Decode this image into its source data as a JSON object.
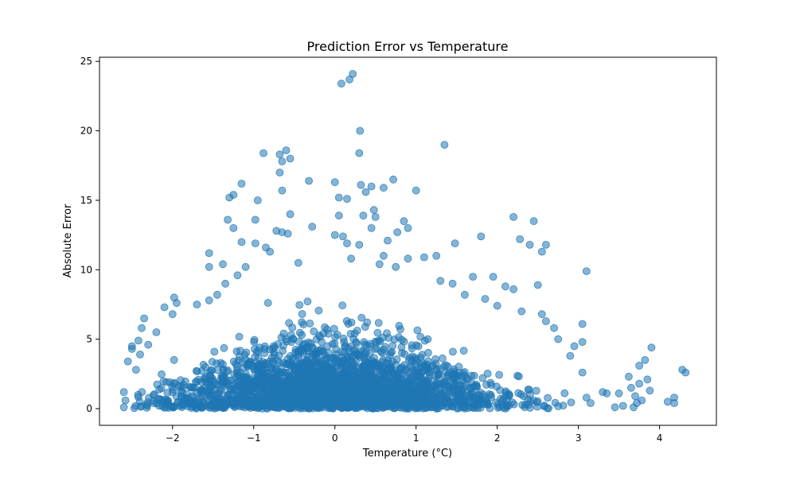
{
  "chart_data": {
    "type": "scatter",
    "title": "Prediction Error vs Temperature",
    "xlabel": "Temperature (°C)",
    "ylabel": "Absolute Error",
    "xlim": [
      -2.9,
      4.7
    ],
    "ylim": [
      -1.2,
      25.3
    ],
    "xticks": [
      {
        "value": -2,
        "label": "−2"
      },
      {
        "value": -1,
        "label": "−1"
      },
      {
        "value": 0,
        "label": "0"
      },
      {
        "value": 1,
        "label": "1"
      },
      {
        "value": 2,
        "label": "2"
      },
      {
        "value": 3,
        "label": "3"
      },
      {
        "value": 4,
        "label": "4"
      }
    ],
    "yticks": [
      {
        "value": 0,
        "label": "0"
      },
      {
        "value": 5,
        "label": "5"
      },
      {
        "value": 10,
        "label": "10"
      },
      {
        "value": 15,
        "label": "15"
      },
      {
        "value": 20,
        "label": "20"
      },
      {
        "value": 25,
        "label": "25"
      }
    ],
    "grid": false,
    "marker_color": "#1f77b4",
    "marker_alpha": 0.55,
    "series": [
      {
        "points": [
          [
            0.22,
            24.1
          ],
          [
            0.18,
            23.7
          ],
          [
            0.08,
            23.4
          ],
          [
            0.31,
            20.0
          ],
          [
            1.35,
            19.0
          ],
          [
            -0.6,
            18.6
          ],
          [
            -0.88,
            18.4
          ],
          [
            0.3,
            18.4
          ],
          [
            -0.68,
            18.3
          ],
          [
            -0.55,
            18.0
          ],
          [
            -0.65,
            17.8
          ],
          [
            -0.68,
            17.0
          ],
          [
            0.72,
            16.5
          ],
          [
            0.0,
            16.3
          ],
          [
            -0.32,
            16.4
          ],
          [
            -1.15,
            16.2
          ],
          [
            0.32,
            16.1
          ],
          [
            0.6,
            15.9
          ],
          [
            0.45,
            16.0
          ],
          [
            0.38,
            15.6
          ],
          [
            1.0,
            15.7
          ],
          [
            -0.65,
            15.7
          ],
          [
            -1.25,
            15.4
          ],
          [
            -1.3,
            15.2
          ],
          [
            0.05,
            15.2
          ],
          [
            0.15,
            15.1
          ],
          [
            -0.95,
            15.0
          ],
          [
            0.48,
            14.3
          ],
          [
            -0.55,
            14.0
          ],
          [
            0.05,
            13.9
          ],
          [
            0.35,
            13.9
          ],
          [
            0.5,
            13.8
          ],
          [
            2.2,
            13.8
          ],
          [
            2.45,
            13.5
          ],
          [
            -1.32,
            13.6
          ],
          [
            -0.98,
            13.6
          ],
          [
            0.85,
            13.5
          ],
          [
            -0.28,
            13.1
          ],
          [
            0.45,
            13.0
          ],
          [
            -1.25,
            13.0
          ],
          [
            0.9,
            13.0
          ],
          [
            -0.72,
            12.8
          ],
          [
            0.0,
            12.5
          ],
          [
            0.77,
            12.7
          ],
          [
            -0.65,
            12.7
          ],
          [
            0.1,
            12.4
          ],
          [
            -0.58,
            12.6
          ],
          [
            1.8,
            12.4
          ],
          [
            2.28,
            12.2
          ],
          [
            0.65,
            12.1
          ],
          [
            2.4,
            11.8
          ],
          [
            1.48,
            11.9
          ],
          [
            2.6,
            11.8
          ],
          [
            2.55,
            11.3
          ],
          [
            -1.15,
            12.0
          ],
          [
            -0.98,
            11.9
          ],
          [
            0.15,
            11.9
          ],
          [
            0.3,
            11.8
          ],
          [
            -0.85,
            11.6
          ],
          [
            -0.8,
            11.3
          ],
          [
            -1.55,
            11.2
          ],
          [
            0.6,
            11.0
          ],
          [
            1.25,
            11.0
          ],
          [
            1.1,
            10.9
          ],
          [
            0.9,
            10.8
          ],
          [
            -1.55,
            10.2
          ],
          [
            -1.38,
            10.4
          ],
          [
            3.1,
            9.9
          ],
          [
            1.7,
            9.5
          ],
          [
            1.95,
            9.5
          ],
          [
            2.2,
            8.6
          ],
          [
            2.5,
            8.9
          ],
          [
            -2.1,
            7.3
          ],
          [
            -1.98,
            8.0
          ],
          [
            -1.95,
            7.6
          ],
          [
            -2.0,
            6.8
          ],
          [
            -2.35,
            6.5
          ],
          [
            -2.38,
            5.8
          ],
          [
            -2.42,
            4.9
          ],
          [
            -2.5,
            4.3
          ],
          [
            -2.5,
            4.5
          ],
          [
            -2.55,
            3.4
          ],
          [
            -2.6,
            1.2
          ],
          [
            -2.58,
            0.6
          ],
          [
            -2.6,
            0.1
          ],
          [
            -2.45,
            2.8
          ],
          [
            2.6,
            6.3
          ],
          [
            2.7,
            5.8
          ],
          [
            2.95,
            4.5
          ],
          [
            3.05,
            6.1
          ],
          [
            3.05,
            4.8
          ],
          [
            2.9,
            3.8
          ],
          [
            3.05,
            2.6
          ],
          [
            3.1,
            0.8
          ],
          [
            3.15,
            0.4
          ],
          [
            3.3,
            1.2
          ],
          [
            3.35,
            1.1
          ],
          [
            3.45,
            0.1
          ],
          [
            3.55,
            0.2
          ],
          [
            3.5,
            1.1
          ],
          [
            3.62,
            2.3
          ],
          [
            3.65,
            1.5
          ],
          [
            3.7,
            0.9
          ],
          [
            3.75,
            1.8
          ],
          [
            3.72,
            0.4
          ],
          [
            3.68,
            0.1
          ],
          [
            3.78,
            0.6
          ],
          [
            3.85,
            2.1
          ],
          [
            3.75,
            3.1
          ],
          [
            3.82,
            3.5
          ],
          [
            3.9,
            4.4
          ],
          [
            3.88,
            1.3
          ],
          [
            4.1,
            0.5
          ],
          [
            4.18,
            0.8
          ],
          [
            4.18,
            0.4
          ],
          [
            4.28,
            2.8
          ],
          [
            4.32,
            2.6
          ],
          [
            2.1,
            8.8
          ],
          [
            1.3,
            9.2
          ],
          [
            1.45,
            9.0
          ],
          [
            -1.7,
            7.5
          ],
          [
            -1.55,
            7.8
          ],
          [
            -1.45,
            8.2
          ],
          [
            -1.35,
            9.0
          ],
          [
            -1.2,
            9.6
          ],
          [
            -1.1,
            10.2
          ],
          [
            -0.45,
            10.5
          ],
          [
            0.2,
            10.8
          ],
          [
            0.55,
            10.4
          ],
          [
            0.75,
            10.2
          ],
          [
            1.6,
            8.2
          ],
          [
            1.85,
            7.9
          ],
          [
            2.0,
            7.4
          ],
          [
            2.3,
            7.0
          ],
          [
            2.55,
            6.8
          ],
          [
            2.75,
            5.0
          ],
          [
            -2.2,
            5.5
          ],
          [
            -2.3,
            4.6
          ],
          [
            -2.4,
            3.9
          ]
        ]
      }
    ],
    "dense_cloud": {
      "count": 2500,
      "x_mean": 0.0,
      "x_sd": 1.0,
      "error_sd": 2.2,
      "x_min": -2.5,
      "x_max": 3.1
    }
  }
}
